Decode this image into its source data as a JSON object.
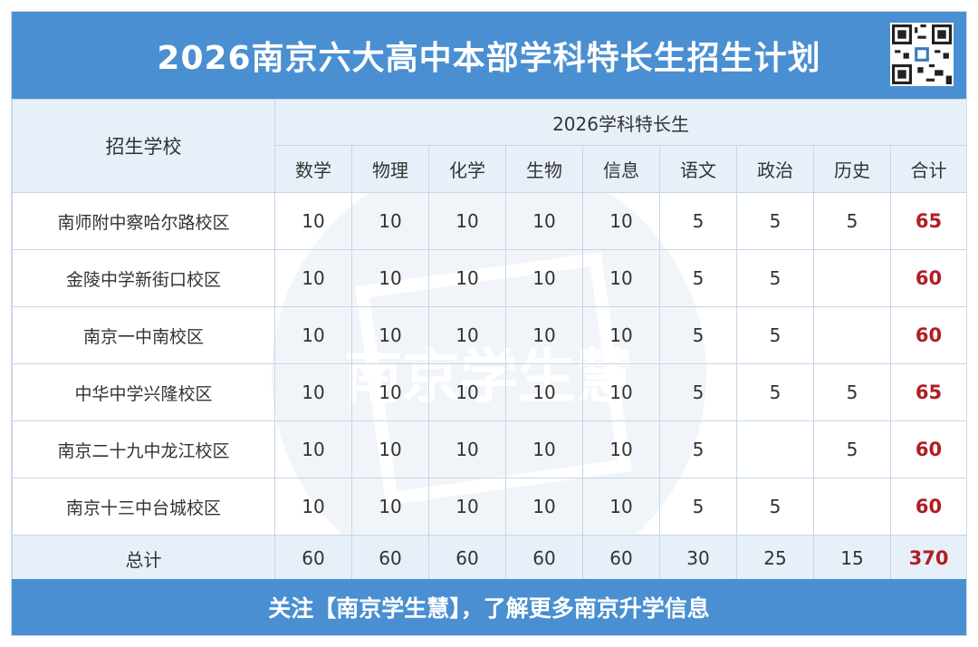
{
  "title": "2026南京六大高中本部学科特长生招生计划",
  "footer": "关注【南京学生慧】，了解更多南京升学信息",
  "watermark_text": "南京学生慧",
  "table": {
    "school_header": "招生学校",
    "group_header": "2026学科特长生",
    "subjects": [
      "数学",
      "物理",
      "化学",
      "生物",
      "信息",
      "语文",
      "政治",
      "历史",
      "合计"
    ],
    "rows": [
      {
        "school": "南师附中察哈尔路校区",
        "values": [
          "10",
          "10",
          "10",
          "10",
          "10",
          "5",
          "5",
          "5"
        ],
        "total": "65"
      },
      {
        "school": "金陵中学新街口校区",
        "values": [
          "10",
          "10",
          "10",
          "10",
          "10",
          "5",
          "5",
          ""
        ],
        "total": "60"
      },
      {
        "school": "南京一中南校区",
        "values": [
          "10",
          "10",
          "10",
          "10",
          "10",
          "5",
          "5",
          ""
        ],
        "total": "60"
      },
      {
        "school": "中华中学兴隆校区",
        "values": [
          "10",
          "10",
          "10",
          "10",
          "10",
          "5",
          "5",
          "5"
        ],
        "total": "65"
      },
      {
        "school": "南京二十九中龙江校区",
        "values": [
          "10",
          "10",
          "10",
          "10",
          "10",
          "5",
          "",
          "5"
        ],
        "total": "60"
      },
      {
        "school": "南京十三中台城校区",
        "values": [
          "10",
          "10",
          "10",
          "10",
          "10",
          "5",
          "5",
          ""
        ],
        "total": "60"
      }
    ],
    "totals": {
      "label": "总计",
      "values": [
        "60",
        "60",
        "60",
        "60",
        "60",
        "30",
        "25",
        "15"
      ],
      "total": "370"
    }
  },
  "colors": {
    "header_blue": "#4a8fd1",
    "cell_blue": "#e7f0f9",
    "sum_red": "#b01e23"
  }
}
